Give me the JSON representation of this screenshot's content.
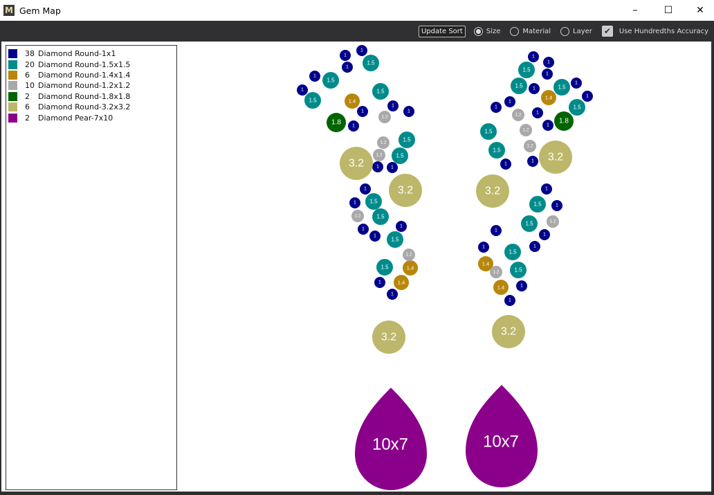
{
  "window": {
    "title": "Gem Map",
    "logo": "M",
    "minimize": "–",
    "maximize": "☐",
    "close": "✕"
  },
  "toolbar": {
    "update_sort": "Update Sort",
    "sort_options": [
      {
        "label": "Size",
        "selected": true
      },
      {
        "label": "Material",
        "selected": false
      },
      {
        "label": "Layer",
        "selected": false
      }
    ],
    "hundredths": {
      "label": "Use Hundredths Accuracy",
      "checked": true
    }
  },
  "legend": [
    {
      "count": "38",
      "name": "Diamond Round-1x1",
      "color": "#00008b",
      "gem_label": "1"
    },
    {
      "count": "20",
      "name": "Diamond Round-1.5x1.5",
      "color": "#008b8b",
      "gem_label": "1.5"
    },
    {
      "count": "6",
      "name": "Diamond Round-1.4x1.4",
      "color": "#b8860b",
      "gem_label": "1.4"
    },
    {
      "count": "10",
      "name": "Diamond Round-1.2x1.2",
      "color": "#a9a9a9",
      "gem_label": "1.2"
    },
    {
      "count": "2",
      "name": "Diamond Round-1.8x1.8",
      "color": "#006400",
      "gem_label": "1.8"
    },
    {
      "count": "6",
      "name": "Diamond Round-3.2x3.2",
      "color": "#bdb76b",
      "gem_label": "3.2"
    },
    {
      "count": "2",
      "name": "Diamond Pear-7x10",
      "color": "#8b008b",
      "gem_label": "10x7"
    }
  ]
}
